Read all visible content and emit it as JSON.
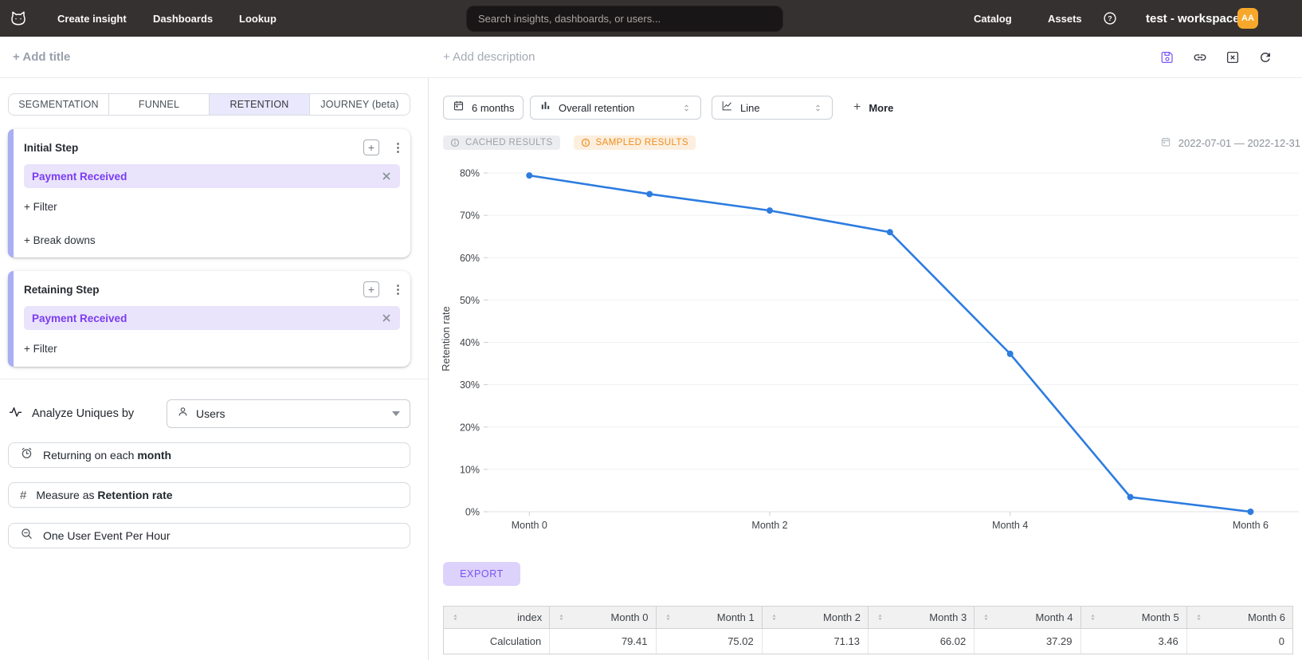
{
  "navbar": {
    "items": [
      {
        "label": "Create insight"
      },
      {
        "label": "Dashboards"
      },
      {
        "label": "Lookup"
      }
    ],
    "search": {
      "placeholder": "Search insights, dashboards, or users..."
    },
    "right_items": [
      {
        "label": "Catalog"
      },
      {
        "label": "Assets"
      }
    ],
    "workspace": "test - workspace",
    "avatar_initials": "AA"
  },
  "header": {
    "add_title": "+ Add title",
    "add_description": "+ Add description"
  },
  "sidebar": {
    "tabs": [
      {
        "label": "SEGMENTATION",
        "active": false
      },
      {
        "label": "FUNNEL",
        "active": false
      },
      {
        "label": "RETENTION",
        "active": true
      },
      {
        "label": "JOURNEY (beta)",
        "active": false
      }
    ],
    "initial_step": {
      "title": "Initial Step",
      "event": "Payment Received",
      "actions": [
        "+ Filter",
        "+ Break downs"
      ]
    },
    "retaining_step": {
      "title": "Retaining Step",
      "event": "Payment Received",
      "actions": [
        "+ Filter"
      ]
    },
    "analyze": {
      "label": "Analyze Uniques by",
      "value": "Users"
    },
    "options": [
      {
        "text": "Returning on each ",
        "bold": "month"
      },
      {
        "text": "Measure as ",
        "bold": "Retention rate"
      },
      {
        "text": "One User Event Per Hour",
        "bold": ""
      }
    ]
  },
  "toolbar": {
    "time_range": "6 months",
    "metric": "Overall retention",
    "chart_type": "Line",
    "more_plus": "+",
    "more_label": "More"
  },
  "status": {
    "cached_label": "CACHED RESULTS",
    "sampled_label": "SAMPLED RESULTS",
    "date_range": "2022-07-01 — 2022-12-31"
  },
  "chart_data": {
    "type": "line",
    "x": [
      "Month 0",
      "Month 1",
      "Month 2",
      "Month 3",
      "Month 4",
      "Month 5",
      "Month 6"
    ],
    "values": [
      79.41,
      75.02,
      71.13,
      66.02,
      37.29,
      3.46,
      0
    ],
    "series_name": "Retention rate",
    "ylabel": "Retention rate",
    "ylim": [
      0,
      85
    ],
    "y_tick_step": 10,
    "y_tick_format": "percent",
    "x_ticks_shown": [
      0,
      2,
      4,
      6
    ],
    "grid": true,
    "legend": false,
    "line_color": "#2d7ce0",
    "grid_color": "#eef0f2",
    "axis_text_color": "#3f4348"
  },
  "export_label": "EXPORT",
  "table": {
    "columns": [
      "index",
      "Month 0",
      "Month 1",
      "Month 2",
      "Month 3",
      "Month 4",
      "Month 5",
      "Month 6"
    ],
    "rows": [
      [
        "Calculation",
        "79.41",
        "75.02",
        "71.13",
        "66.02",
        "37.29",
        "3.46",
        "0"
      ]
    ]
  }
}
